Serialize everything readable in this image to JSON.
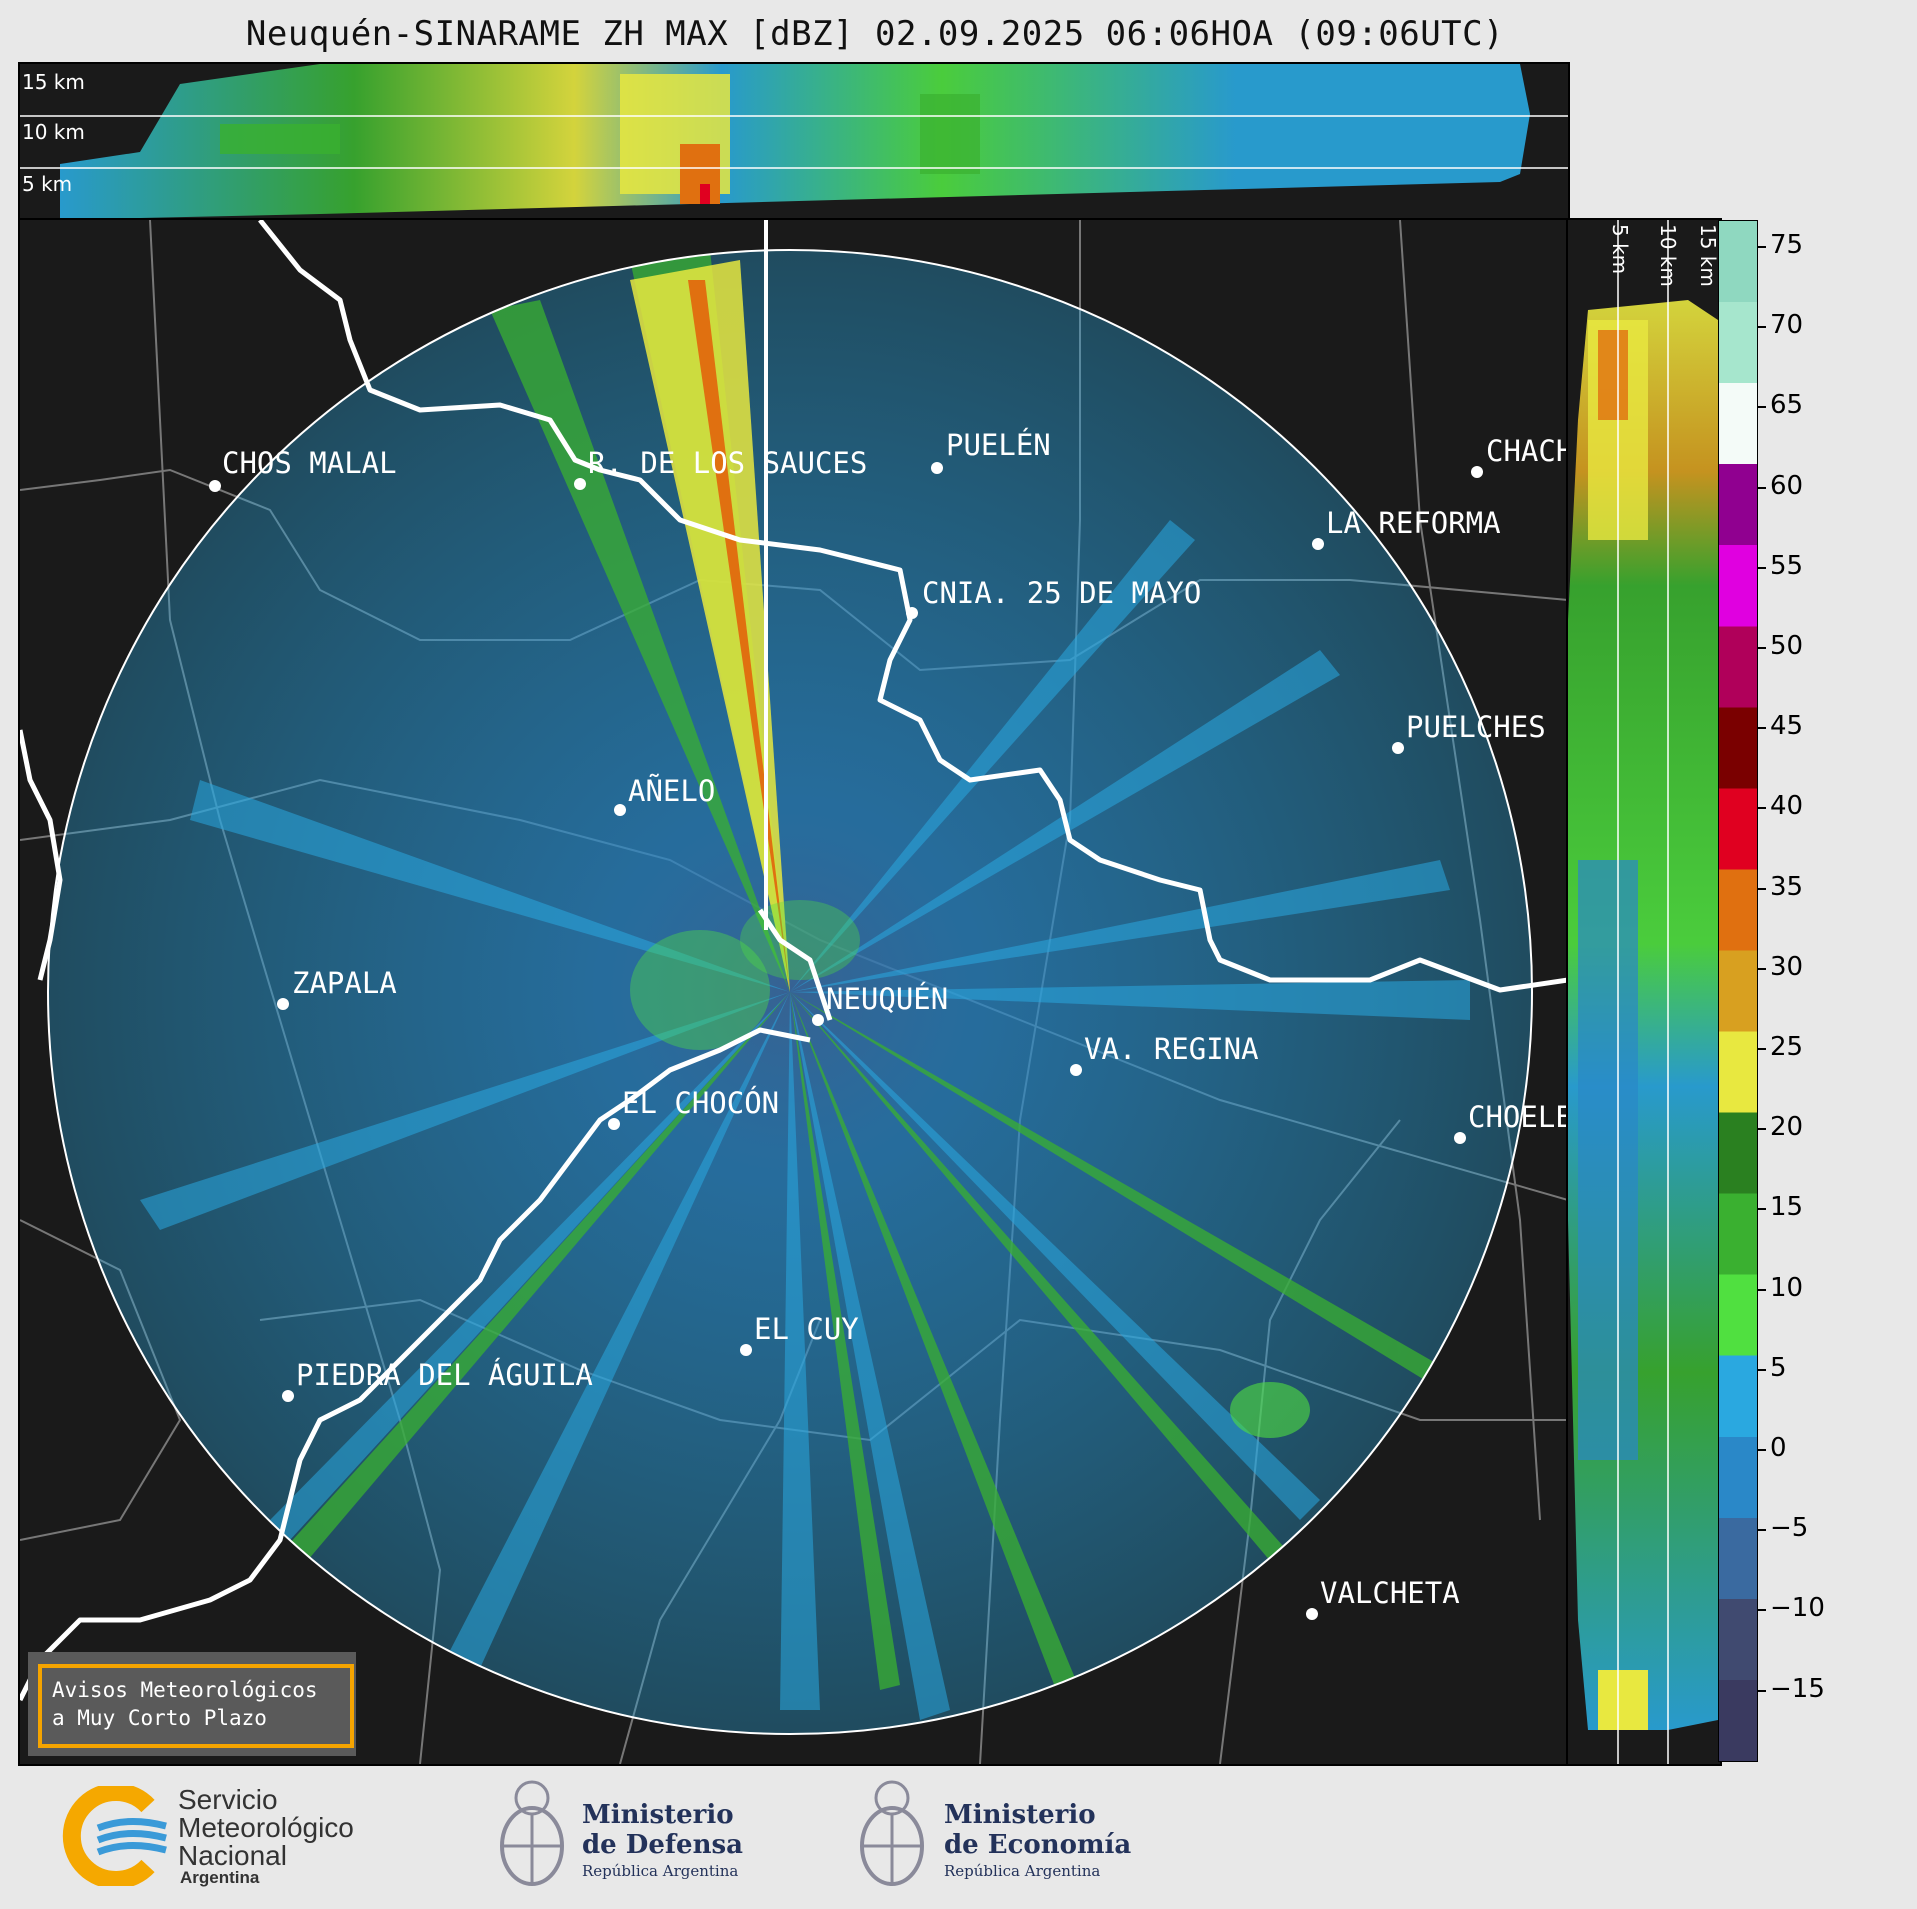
{
  "title": "Neuquén-SINARAME ZH MAX [dBZ] 02.09.2025 06:06HOA (09:06UTC)",
  "height_labels": [
    "15 km",
    "10 km",
    "5 km"
  ],
  "side_labels": [
    "5 km",
    "10 km",
    "15 km"
  ],
  "colorbar": {
    "ticks": [
      "75",
      "70",
      "65",
      "60",
      "55",
      "50",
      "45",
      "40",
      "35",
      "30",
      "25",
      "20",
      "15",
      "10",
      "5",
      "0",
      "−5",
      "−10",
      "−15"
    ],
    "colors": [
      "#8fd8c0",
      "#a6e6cd",
      "#f4fbf8",
      "#900090",
      "#e000e0",
      "#b0005a",
      "#7a0000",
      "#e00020",
      "#e07010",
      "#d8a020",
      "#e8e840",
      "#2a8020",
      "#3ab030",
      "#50e040",
      "#2aa8e0",
      "#2a88c8",
      "#3a6aa0",
      "#404a70",
      "#3a3a60"
    ]
  },
  "cities": [
    {
      "name": "CHOS MALAL"
    },
    {
      "name": "R. DE LOS SAUCES"
    },
    {
      "name": "PUELÉN"
    },
    {
      "name": "CHACH"
    },
    {
      "name": "LA REFORMA"
    },
    {
      "name": "CNIA. 25 DE MAYO"
    },
    {
      "name": "PUELCHES"
    },
    {
      "name": "AÑELO"
    },
    {
      "name": "ZAPALA"
    },
    {
      "name": "NEUQUÉN"
    },
    {
      "name": "VA. REGINA"
    },
    {
      "name": "EL CHOCÓN"
    },
    {
      "name": "CHOELE"
    },
    {
      "name": "EL CUY"
    },
    {
      "name": "PIEDRA DEL ÁGUILA"
    },
    {
      "name": "VALCHETA"
    }
  ],
  "warning": {
    "line1": "Avisos Meteorológicos",
    "line2": "a Muy Corto Plazo"
  },
  "logos": {
    "smn": [
      "Servicio",
      "Meteorológico",
      "Nacional",
      "Argentina"
    ],
    "defensa": [
      "Ministerio",
      "de Defensa",
      "República Argentina"
    ],
    "economia": [
      "Ministerio",
      "de Economía",
      "República Argentina"
    ]
  }
}
